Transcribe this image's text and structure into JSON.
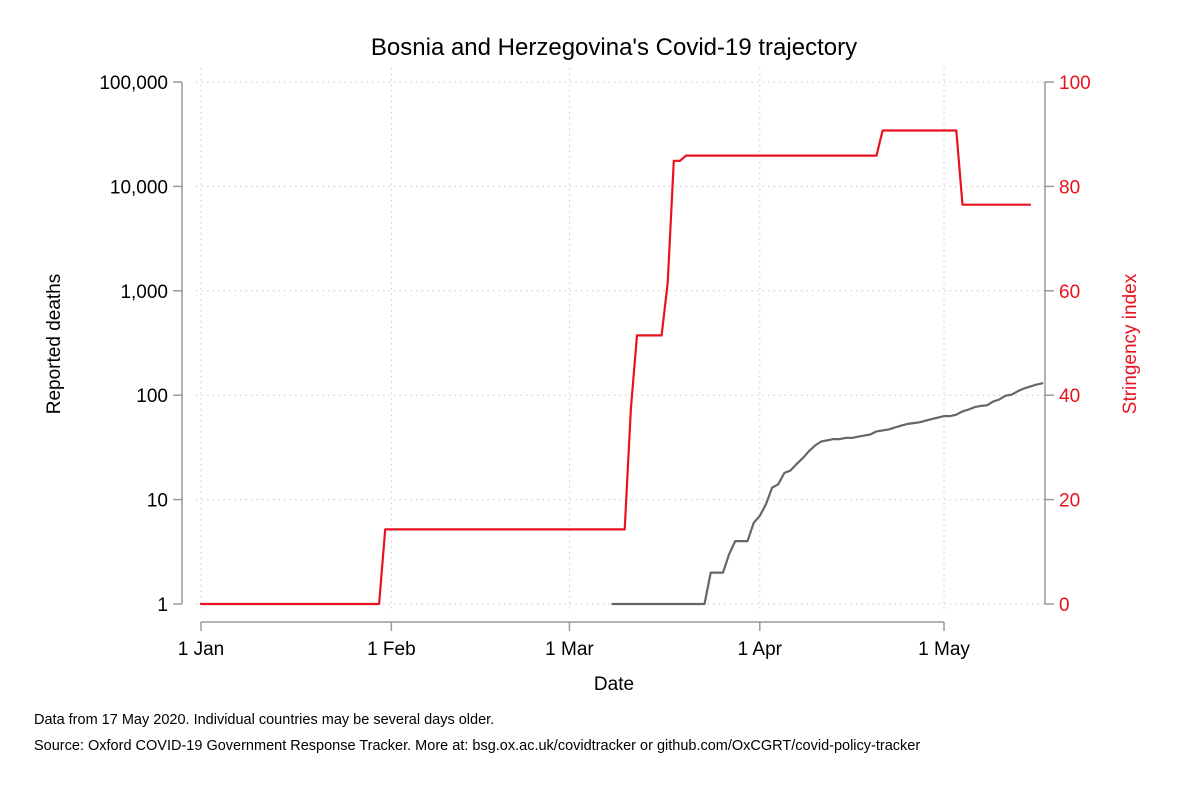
{
  "chart_data": {
    "type": "line",
    "title": "Bosnia and Herzegovina's Covid-19 trajectory",
    "xlabel": "Date",
    "ylabel_left": "Reported deaths",
    "ylabel_right": "Stringency index",
    "x_ticks": [
      {
        "date": "2020-01-01",
        "label": "1 Jan"
      },
      {
        "date": "2020-02-01",
        "label": "1 Feb"
      },
      {
        "date": "2020-03-01",
        "label": "1 Mar"
      },
      {
        "date": "2020-04-01",
        "label": "1 Apr"
      },
      {
        "date": "2020-05-01",
        "label": "1 May"
      }
    ],
    "xlim": [
      "2020-01-01",
      "2020-05-15"
    ],
    "y_left_scale": "log",
    "y_left_ticks": [
      {
        "value": 1,
        "label": "1"
      },
      {
        "value": 10,
        "label": "10"
      },
      {
        "value": 100,
        "label": "100"
      },
      {
        "value": 1000,
        "label": "1,000"
      },
      {
        "value": 10000,
        "label": "10,000"
      },
      {
        "value": 100000,
        "label": "100,000"
      }
    ],
    "y_left_lim": [
      1,
      100000
    ],
    "y_right_ticks": [
      {
        "value": 0,
        "label": "0"
      },
      {
        "value": 20,
        "label": "20"
      },
      {
        "value": 40,
        "label": "40"
      },
      {
        "value": 60,
        "label": "60"
      },
      {
        "value": 80,
        "label": "80"
      },
      {
        "value": 100,
        "label": "100"
      }
    ],
    "y_right_lim": [
      0,
      100
    ],
    "grid": true,
    "colors": {
      "stringency": "#e8121f",
      "deaths": "#666666",
      "axis_right": "#e8121f"
    },
    "series": [
      {
        "axis": "right",
        "points": [
          [
            "2020-01-01",
            0
          ],
          [
            "2020-01-30",
            0
          ],
          [
            "2020-01-31",
            14.29
          ],
          [
            "2020-03-10",
            14.29
          ],
          [
            "2020-03-11",
            37.5
          ],
          [
            "2020-03-12",
            51.46
          ],
          [
            "2020-03-16",
            51.46
          ],
          [
            "2020-03-17",
            61.5
          ],
          [
            "2020-03-18",
            84.9
          ],
          [
            "2020-03-19",
            84.9
          ],
          [
            "2020-03-20",
            85.9
          ],
          [
            "2020-04-20",
            85.9
          ],
          [
            "2020-04-21",
            90.7
          ],
          [
            "2020-05-03",
            90.7
          ],
          [
            "2020-05-04",
            76.5
          ],
          [
            "2020-05-15",
            76.5
          ]
        ]
      },
      {
        "axis": "left",
        "points": [
          [
            "2020-03-08",
            1
          ],
          [
            "2020-03-23",
            1
          ],
          [
            "2020-03-24",
            2
          ],
          [
            "2020-03-26",
            2
          ],
          [
            "2020-03-27",
            3
          ],
          [
            "2020-03-28",
            4
          ],
          [
            "2020-03-30",
            4
          ],
          [
            "2020-03-31",
            6
          ],
          [
            "2020-04-01",
            7
          ],
          [
            "2020-04-02",
            9
          ],
          [
            "2020-04-03",
            13
          ],
          [
            "2020-04-04",
            14
          ],
          [
            "2020-04-05",
            18
          ],
          [
            "2020-04-06",
            19
          ],
          [
            "2020-04-07",
            22
          ],
          [
            "2020-04-08",
            25
          ],
          [
            "2020-04-09",
            29
          ],
          [
            "2020-04-10",
            33
          ],
          [
            "2020-04-11",
            36
          ],
          [
            "2020-04-12",
            37
          ],
          [
            "2020-04-13",
            38
          ],
          [
            "2020-04-14",
            38
          ],
          [
            "2020-04-15",
            39
          ],
          [
            "2020-04-16",
            39
          ],
          [
            "2020-04-17",
            40
          ],
          [
            "2020-04-18",
            41
          ],
          [
            "2020-04-19",
            42
          ],
          [
            "2020-04-20",
            45
          ],
          [
            "2020-04-21",
            46
          ],
          [
            "2020-04-22",
            47
          ],
          [
            "2020-04-23",
            49
          ],
          [
            "2020-04-24",
            51
          ],
          [
            "2020-04-25",
            53
          ],
          [
            "2020-04-26",
            54
          ],
          [
            "2020-04-27",
            55
          ],
          [
            "2020-04-28",
            57
          ],
          [
            "2020-04-29",
            59
          ],
          [
            "2020-04-30",
            61
          ],
          [
            "2020-05-01",
            63
          ],
          [
            "2020-05-02",
            63
          ],
          [
            "2020-05-03",
            65
          ],
          [
            "2020-05-04",
            70
          ],
          [
            "2020-05-05",
            73
          ],
          [
            "2020-05-06",
            77
          ],
          [
            "2020-05-07",
            79
          ],
          [
            "2020-05-08",
            80
          ],
          [
            "2020-05-09",
            87
          ],
          [
            "2020-05-10",
            91
          ],
          [
            "2020-05-11",
            99
          ],
          [
            "2020-05-12",
            101
          ],
          [
            "2020-05-13",
            109
          ],
          [
            "2020-05-14",
            116
          ],
          [
            "2020-05-15",
            121
          ],
          [
            "2020-05-16",
            126
          ],
          [
            "2020-05-17",
            130
          ]
        ]
      }
    ]
  },
  "notes": {
    "data_note": "Data from 17 May 2020. Individual countries may be several days older.",
    "source_note": "Source: Oxford COVID-19 Government Response Tracker. More at: bsg.ox.ac.uk/covidtracker or github.com/OxCGRT/covid-policy-tracker"
  }
}
